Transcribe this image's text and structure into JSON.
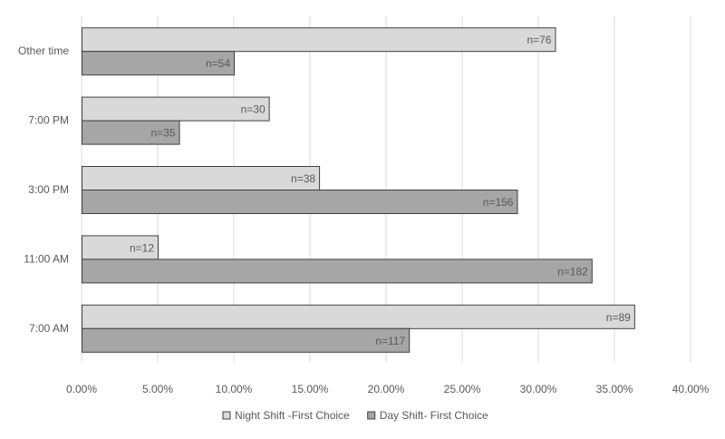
{
  "chart_data": {
    "type": "bar",
    "orientation": "horizontal",
    "title": "",
    "xlabel": "",
    "ylabel": "",
    "categories": [
      "7:00 AM",
      "11:00 AM",
      "3:00 PM",
      "7:00 PM",
      "Other time"
    ],
    "series": [
      {
        "name": "Night Shift -First Choice",
        "color": "#d9d9d9",
        "values": [
          36.3,
          5.0,
          15.6,
          12.3,
          31.1
        ],
        "labels": [
          "n=89",
          "n=12",
          "n=38",
          "n=30",
          "n=76"
        ]
      },
      {
        "name": "Day Shift- First Choice",
        "color": "#a6a6a6",
        "values": [
          21.5,
          33.5,
          28.6,
          6.4,
          10.0
        ],
        "labels": [
          "n=117",
          "n=182",
          "n=156",
          "n=35",
          "n=54"
        ]
      }
    ],
    "xlim": [
      0,
      40
    ],
    "xticks": [
      "0.00%",
      "5.00%",
      "10.00%",
      "15.00%",
      "20.00%",
      "25.00%",
      "30.00%",
      "35.00%",
      "40.00%"
    ],
    "grid": true,
    "legend_position": "bottom"
  }
}
